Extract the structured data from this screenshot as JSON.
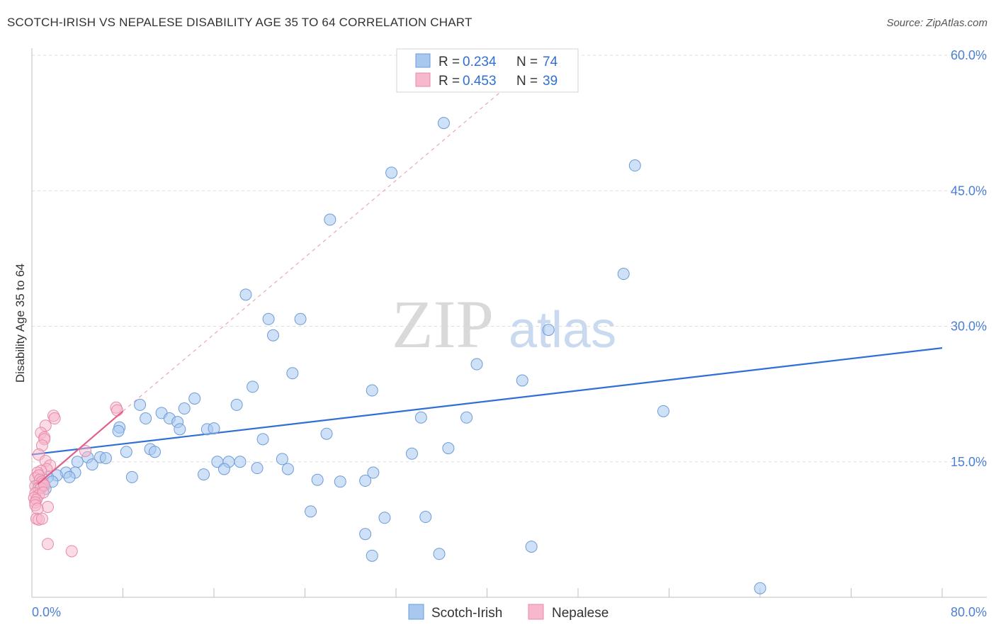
{
  "title": "SCOTCH-IRISH VS NEPALESE DISABILITY AGE 35 TO 64 CORRELATION CHART",
  "source": "Source: ZipAtlas.com",
  "watermark": {
    "zip": "ZIP",
    "atlas": "atlas"
  },
  "colors": {
    "blue_fill": "#a8c8f0",
    "blue_stroke": "#6d9bd8",
    "blue_line": "#2f6fd6",
    "pink_fill": "#f7b8cc",
    "pink_stroke": "#e68aa8",
    "pink_line": "#e0608c",
    "tick_text": "#4a7fd4",
    "grid": "#dddddd"
  },
  "chart_data": {
    "type": "scatter",
    "title": "SCOTCH-IRISH VS NEPALESE DISABILITY AGE 35 TO 64 CORRELATION CHART",
    "xlabel": "",
    "ylabel": "Disability Age 35 to 64",
    "xlim": [
      0,
      80
    ],
    "ylim": [
      0,
      63
    ],
    "x_tick_labels": [
      {
        "value": 0,
        "label": "0.0%"
      },
      {
        "value": 80,
        "label": "80.0%"
      }
    ],
    "y_ticks": [
      {
        "value": 15,
        "label": "15.0%"
      },
      {
        "value": 30,
        "label": "30.0%"
      },
      {
        "value": 45,
        "label": "45.0%"
      },
      {
        "value": 60,
        "label": "60.0%"
      }
    ],
    "grid": true,
    "legend": {
      "position": "top-center",
      "entries": [
        {
          "series": "Scotch-Irish",
          "r_label": "R =",
          "r_value": "0.234",
          "n_label": "N =",
          "n_value": "74"
        },
        {
          "series": "Nepalese",
          "r_label": "R =",
          "r_value": "0.453",
          "n_label": "N =",
          "n_value": "39"
        }
      ]
    },
    "bottom_legend": [
      "Scotch-Irish",
      "Nepalese"
    ],
    "series": [
      {
        "name": "Scotch-Irish",
        "color": "#a8c8f0",
        "trend": {
          "x": [
            0,
            80
          ],
          "y": [
            15.8,
            27.6
          ],
          "style": "solid"
        },
        "points": [
          [
            36.2,
            52.5
          ],
          [
            31.6,
            47.0
          ],
          [
            26.2,
            41.8
          ],
          [
            53.0,
            47.8
          ],
          [
            52.0,
            35.8
          ],
          [
            18.8,
            33.5
          ],
          [
            20.8,
            30.8
          ],
          [
            23.6,
            30.8
          ],
          [
            21.2,
            29.0
          ],
          [
            45.4,
            29.6
          ],
          [
            22.9,
            24.8
          ],
          [
            39.1,
            25.8
          ],
          [
            43.1,
            24.0
          ],
          [
            19.4,
            23.3
          ],
          [
            29.9,
            22.9
          ],
          [
            14.3,
            22.0
          ],
          [
            9.5,
            21.3
          ],
          [
            11.4,
            20.4
          ],
          [
            13.4,
            20.9
          ],
          [
            18.0,
            21.3
          ],
          [
            55.5,
            20.6
          ],
          [
            10.0,
            19.8
          ],
          [
            12.1,
            19.8
          ],
          [
            12.8,
            19.4
          ],
          [
            34.2,
            19.9
          ],
          [
            38.2,
            19.9
          ],
          [
            7.7,
            18.8
          ],
          [
            7.6,
            18.4
          ],
          [
            13.0,
            18.6
          ],
          [
            15.4,
            18.6
          ],
          [
            16.0,
            18.7
          ],
          [
            20.3,
            17.5
          ],
          [
            25.9,
            18.1
          ],
          [
            8.3,
            16.1
          ],
          [
            10.4,
            16.4
          ],
          [
            10.8,
            16.1
          ],
          [
            33.4,
            15.9
          ],
          [
            36.6,
            16.5
          ],
          [
            4.9,
            15.5
          ],
          [
            6.0,
            15.5
          ],
          [
            6.5,
            15.4
          ],
          [
            4.0,
            15.0
          ],
          [
            16.3,
            15.0
          ],
          [
            17.3,
            15.0
          ],
          [
            18.3,
            15.0
          ],
          [
            22.0,
            15.3
          ],
          [
            5.3,
            14.7
          ],
          [
            3.8,
            13.8
          ],
          [
            3.0,
            13.8
          ],
          [
            2.2,
            13.5
          ],
          [
            3.3,
            13.3
          ],
          [
            8.8,
            13.3
          ],
          [
            15.1,
            13.6
          ],
          [
            16.9,
            14.2
          ],
          [
            19.8,
            14.3
          ],
          [
            22.5,
            14.2
          ],
          [
            30.0,
            13.8
          ],
          [
            1.4,
            13.3
          ],
          [
            1.8,
            12.8
          ],
          [
            25.1,
            13.0
          ],
          [
            27.1,
            12.8
          ],
          [
            29.3,
            12.9
          ],
          [
            1.0,
            12.4
          ],
          [
            0.6,
            12.6
          ],
          [
            0.8,
            12.2
          ],
          [
            1.2,
            12.0
          ],
          [
            24.5,
            9.5
          ],
          [
            31.0,
            8.8
          ],
          [
            34.6,
            8.9
          ],
          [
            29.3,
            7.0
          ],
          [
            43.9,
            5.6
          ],
          [
            29.9,
            4.6
          ],
          [
            35.8,
            4.8
          ],
          [
            64.0,
            1.0
          ]
        ]
      },
      {
        "name": "Nepalese",
        "color": "#f7b8cc",
        "trend": {
          "x": [
            0.5,
            8
          ],
          "y": [
            12.5,
            20.6
          ],
          "style": "solid"
        },
        "trend_extended": {
          "x": [
            8,
            42
          ],
          "y": [
            20.6,
            56.8
          ],
          "style": "dashed"
        },
        "points": [
          [
            7.4,
            21.0
          ],
          [
            7.5,
            20.7
          ],
          [
            1.9,
            20.1
          ],
          [
            2.0,
            19.8
          ],
          [
            1.2,
            19.0
          ],
          [
            0.8,
            18.2
          ],
          [
            1.1,
            17.7
          ],
          [
            1.1,
            17.5
          ],
          [
            0.9,
            16.8
          ],
          [
            0.6,
            15.8
          ],
          [
            4.7,
            16.2
          ],
          [
            1.2,
            15.1
          ],
          [
            1.6,
            14.6
          ],
          [
            1.3,
            14.2
          ],
          [
            0.8,
            14.0
          ],
          [
            0.5,
            13.8
          ],
          [
            0.3,
            13.2
          ],
          [
            0.6,
            13.5
          ],
          [
            0.7,
            13.0
          ],
          [
            0.9,
            12.8
          ],
          [
            1.0,
            12.6
          ],
          [
            0.3,
            12.3
          ],
          [
            0.6,
            12.1
          ],
          [
            0.8,
            12.1
          ],
          [
            1.1,
            12.4
          ],
          [
            0.3,
            11.5
          ],
          [
            0.6,
            11.3
          ],
          [
            1.0,
            11.6
          ],
          [
            0.2,
            11.0
          ],
          [
            0.4,
            10.8
          ],
          [
            0.3,
            10.5
          ],
          [
            0.3,
            10.2
          ],
          [
            1.4,
            10.0
          ],
          [
            0.5,
            9.8
          ],
          [
            0.4,
            8.7
          ],
          [
            0.6,
            8.6
          ],
          [
            0.9,
            8.7
          ],
          [
            1.4,
            5.9
          ],
          [
            3.5,
            5.1
          ]
        ]
      }
    ]
  }
}
